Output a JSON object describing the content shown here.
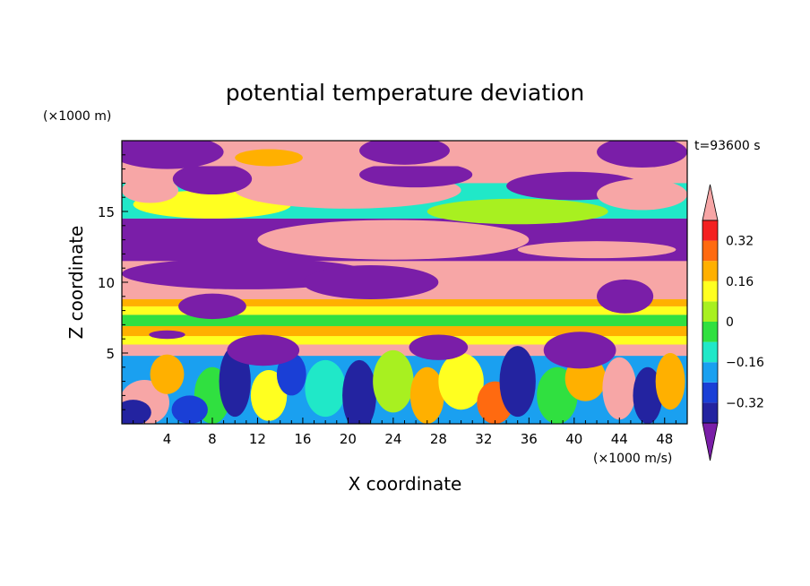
{
  "chart_data": {
    "type": "heatmap",
    "title": "potential temperature deviation",
    "xlabel": "X coordinate",
    "ylabel": "Z coordinate",
    "x_unit": "(×1000 m/s)",
    "y_unit": "(×1000 m)",
    "time_label": "t=93600 s",
    "xlim": [
      0,
      50
    ],
    "ylim": [
      0,
      20
    ],
    "x_ticks": [
      4,
      8,
      12,
      16,
      20,
      24,
      28,
      32,
      36,
      40,
      44,
      48
    ],
    "y_ticks": [
      5,
      10,
      15
    ],
    "colorbar": {
      "levels": [
        -0.4,
        -0.32,
        -0.24,
        -0.16,
        -0.08,
        0,
        0.08,
        0.16,
        0.24,
        0.32,
        0.4
      ],
      "tick_labels": [
        "0.32",
        "0.16",
        "0",
        "−0.16",
        "−0.32"
      ],
      "tick_values": [
        0.32,
        0.16,
        0,
        -0.16,
        -0.32
      ],
      "colors": [
        "#7a1ea8",
        "#2323a0",
        "#1a3fd6",
        "#1aa0f0",
        "#20e8c8",
        "#30e040",
        "#a8f020",
        "#ffff20",
        "#ffb000",
        "#ff6a10",
        "#f42020",
        "#f7a6a6"
      ],
      "extend": "both"
    },
    "grid": false
  }
}
